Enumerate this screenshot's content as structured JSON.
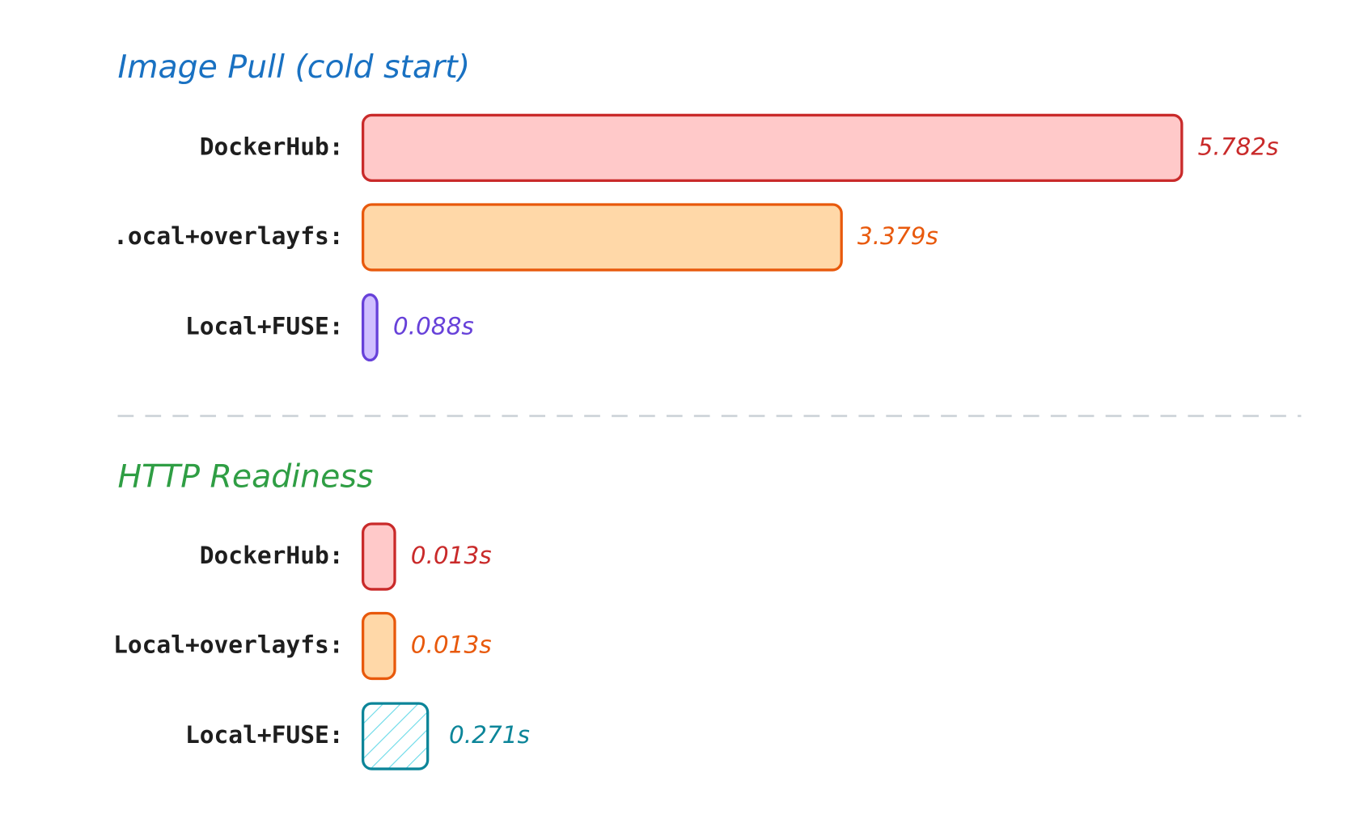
{
  "chart_data": [
    {
      "type": "bar",
      "orientation": "horizontal",
      "title": "Image Pull (cold start)",
      "title_color": "#1971c2",
      "categories": [
        "DockerHub:",
        ".ocal+overlayfs:",
        "Local+FUSE:"
      ],
      "values": [
        5.782,
        3.379,
        0.088
      ],
      "value_labels": [
        "5.782s",
        "3.379s",
        "0.088s"
      ],
      "colors": [
        "#c92a2a",
        "#e8590c",
        "#6741d9"
      ],
      "fill_colors": [
        "#ffc9c9",
        "#ffd8a8",
        "#d0bfff"
      ],
      "hatched": [
        false,
        false,
        false
      ]
    },
    {
      "type": "bar",
      "orientation": "horizontal",
      "title": "HTTP Readiness",
      "title_color": "#2f9e44",
      "categories": [
        "DockerHub:",
        "Local+overlayfs:",
        "Local+FUSE:"
      ],
      "values": [
        0.013,
        0.013,
        0.271
      ],
      "value_labels": [
        "0.013s",
        "0.013s",
        "0.271s"
      ],
      "colors": [
        "#c92a2a",
        "#e8590c",
        "#0c8599"
      ],
      "fill_colors": [
        "#ffc9c9",
        "#ffd8a8",
        "#99e9f2"
      ],
      "hatched": [
        false,
        false,
        true
      ]
    }
  ]
}
